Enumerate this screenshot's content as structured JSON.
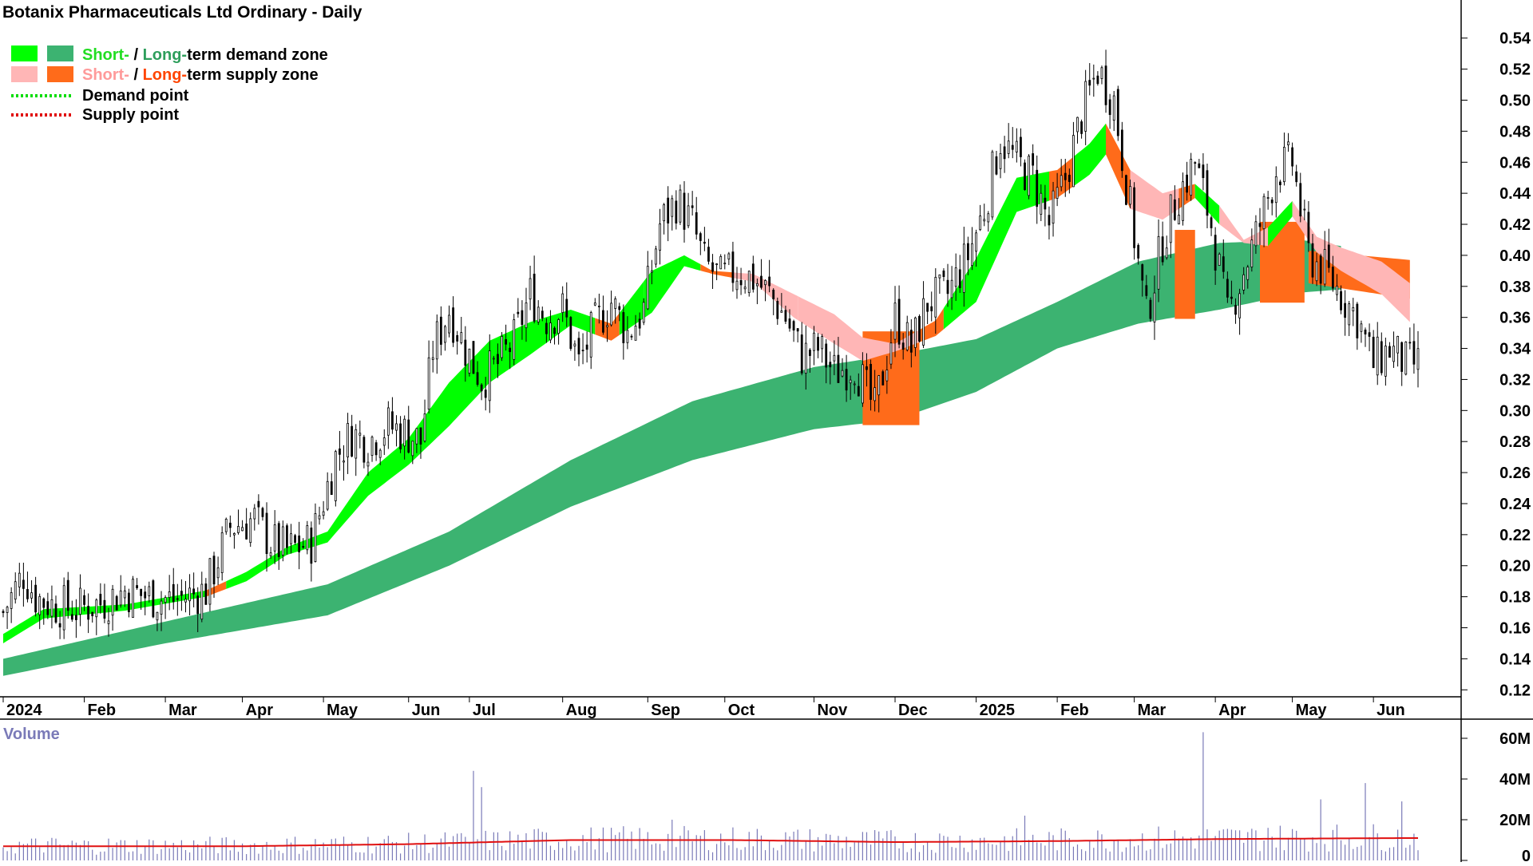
{
  "title": "Botanix Pharmaceuticals Ltd Ordinary - Daily",
  "legend": {
    "row1": {
      "short": "Short-",
      "sep": " / ",
      "long": "Long-",
      "rest": "term demand zone"
    },
    "row2": {
      "short": "Short-",
      "sep": " / ",
      "long": "Long-",
      "rest": "term supply zone"
    },
    "row3": "Demand point",
    "row4": "Supply point"
  },
  "colors": {
    "short_demand": "#00ff00",
    "long_demand": "#3cb371",
    "short_supply": "#ffb6b6",
    "long_supply": "#ff6b1a",
    "candle": "#000000",
    "volume_bar": "#7a7ab8",
    "volume_avg": "#e01010",
    "legend_short_demand_text": "#22dd22",
    "legend_long_demand_text": "#2e9e5c",
    "legend_short_supply_text": "#ff9a9a",
    "legend_long_supply_text": "#ff4500"
  },
  "volume_label": "Volume",
  "chart_data": {
    "type": "candlestick",
    "price_axis": {
      "min": 0.12,
      "max": 0.54,
      "step": 0.02,
      "ticks": [
        "0.12",
        "0.14",
        "0.16",
        "0.18",
        "0.20",
        "0.22",
        "0.24",
        "0.26",
        "0.28",
        "0.30",
        "0.32",
        "0.34",
        "0.36",
        "0.38",
        "0.40",
        "0.42",
        "0.44",
        "0.46",
        "0.48",
        "0.50",
        "0.52",
        "0.54"
      ]
    },
    "volume_axis": {
      "min": 0,
      "max": 60,
      "unit": "M",
      "ticks": [
        "0",
        "20M",
        "40M",
        "60M"
      ],
      "tick_values": [
        0,
        20,
        40,
        60
      ]
    },
    "months": [
      "2024",
      "Feb",
      "Mar",
      "Apr",
      "May",
      "Jun",
      "Jul",
      "Aug",
      "Sep",
      "Oct",
      "Nov",
      "Dec",
      "2025",
      "Feb",
      "Mar",
      "Apr",
      "May",
      "Jun"
    ],
    "month_index": [
      0,
      20,
      40,
      59,
      79,
      100,
      115,
      138,
      159,
      178,
      200,
      220,
      240,
      260,
      279,
      299,
      318,
      338
    ],
    "total_days": 350,
    "close_path": [
      [
        0,
        0.17
      ],
      [
        5,
        0.195
      ],
      [
        8,
        0.18
      ],
      [
        12,
        0.175
      ],
      [
        18,
        0.172
      ],
      [
        24,
        0.176
      ],
      [
        30,
        0.184
      ],
      [
        36,
        0.18
      ],
      [
        42,
        0.178
      ],
      [
        50,
        0.184
      ],
      [
        56,
        0.225
      ],
      [
        62,
        0.23
      ],
      [
        66,
        0.215
      ],
      [
        70,
        0.21
      ],
      [
        76,
        0.215
      ],
      [
        82,
        0.27
      ],
      [
        86,
        0.285
      ],
      [
        90,
        0.28
      ],
      [
        95,
        0.29
      ],
      [
        100,
        0.285
      ],
      [
        103,
        0.28
      ],
      [
        106,
        0.34
      ],
      [
        110,
        0.365
      ],
      [
        114,
        0.34
      ],
      [
        118,
        0.32
      ],
      [
        122,
        0.33
      ],
      [
        126,
        0.345
      ],
      [
        130,
        0.375
      ],
      [
        134,
        0.36
      ],
      [
        138,
        0.365
      ],
      [
        142,
        0.33
      ],
      [
        146,
        0.355
      ],
      [
        150,
        0.37
      ],
      [
        154,
        0.35
      ],
      [
        158,
        0.365
      ],
      [
        162,
        0.42
      ],
      [
        166,
        0.435
      ],
      [
        170,
        0.42
      ],
      [
        173,
        0.395
      ],
      [
        177,
        0.385
      ],
      [
        181,
        0.39
      ],
      [
        185,
        0.385
      ],
      [
        189,
        0.375
      ],
      [
        193,
        0.36
      ],
      [
        197,
        0.335
      ],
      [
        201,
        0.34
      ],
      [
        205,
        0.325
      ],
      [
        210,
        0.33
      ],
      [
        215,
        0.3
      ],
      [
        220,
        0.36
      ],
      [
        224,
        0.34
      ],
      [
        228,
        0.37
      ],
      [
        233,
        0.375
      ],
      [
        238,
        0.4
      ],
      [
        242,
        0.43
      ],
      [
        246,
        0.475
      ],
      [
        250,
        0.46
      ],
      [
        254,
        0.45
      ],
      [
        258,
        0.42
      ],
      [
        262,
        0.45
      ],
      [
        266,
        0.49
      ],
      [
        270,
        0.52
      ],
      [
        274,
        0.5
      ],
      [
        278,
        0.43
      ],
      [
        282,
        0.36
      ],
      [
        286,
        0.41
      ],
      [
        290,
        0.44
      ],
      [
        294,
        0.46
      ],
      [
        298,
        0.42
      ],
      [
        302,
        0.36
      ],
      [
        306,
        0.39
      ],
      [
        310,
        0.42
      ],
      [
        314,
        0.455
      ],
      [
        318,
        0.46
      ],
      [
        322,
        0.4
      ],
      [
        326,
        0.39
      ],
      [
        330,
        0.375
      ],
      [
        334,
        0.36
      ],
      [
        338,
        0.33
      ],
      [
        342,
        0.34
      ],
      [
        346,
        0.33
      ]
    ],
    "zones": {
      "short_term": {
        "lower": [
          [
            0,
            0.15
          ],
          [
            10,
            0.166
          ],
          [
            30,
            0.171
          ],
          [
            50,
            0.18
          ],
          [
            60,
            0.19
          ],
          [
            70,
            0.207
          ],
          [
            80,
            0.215
          ],
          [
            90,
            0.245
          ],
          [
            100,
            0.265
          ],
          [
            110,
            0.29
          ],
          [
            120,
            0.318
          ],
          [
            130,
            0.336
          ],
          [
            140,
            0.355
          ],
          [
            150,
            0.345
          ],
          [
            160,
            0.363
          ],
          [
            168,
            0.393
          ],
          [
            175,
            0.388
          ],
          [
            185,
            0.383
          ],
          [
            195,
            0.36
          ],
          [
            205,
            0.343
          ],
          [
            212,
            0.332
          ],
          [
            220,
            0.338
          ],
          [
            230,
            0.348
          ],
          [
            240,
            0.37
          ],
          [
            250,
            0.428
          ],
          [
            260,
            0.437
          ],
          [
            268,
            0.452
          ],
          [
            272,
            0.465
          ],
          [
            278,
            0.43
          ],
          [
            286,
            0.423
          ],
          [
            294,
            0.437
          ],
          [
            300,
            0.42
          ],
          [
            306,
            0.408
          ],
          [
            312,
            0.406
          ],
          [
            318,
            0.425
          ],
          [
            324,
            0.402
          ],
          [
            330,
            0.39
          ],
          [
            340,
            0.375
          ],
          [
            347,
            0.357
          ]
        ],
        "upper": [
          [
            0,
            0.156
          ],
          [
            10,
            0.172
          ],
          [
            30,
            0.175
          ],
          [
            50,
            0.184
          ],
          [
            60,
            0.196
          ],
          [
            70,
            0.212
          ],
          [
            80,
            0.222
          ],
          [
            90,
            0.26
          ],
          [
            100,
            0.282
          ],
          [
            110,
            0.318
          ],
          [
            120,
            0.345
          ],
          [
            130,
            0.357
          ],
          [
            140,
            0.365
          ],
          [
            150,
            0.356
          ],
          [
            160,
            0.39
          ],
          [
            168,
            0.4
          ],
          [
            175,
            0.39
          ],
          [
            185,
            0.388
          ],
          [
            195,
            0.375
          ],
          [
            205,
            0.362
          ],
          [
            212,
            0.347
          ],
          [
            220,
            0.343
          ],
          [
            230,
            0.358
          ],
          [
            240,
            0.398
          ],
          [
            250,
            0.45
          ],
          [
            260,
            0.455
          ],
          [
            268,
            0.472
          ],
          [
            272,
            0.485
          ],
          [
            278,
            0.455
          ],
          [
            286,
            0.44
          ],
          [
            294,
            0.446
          ],
          [
            300,
            0.432
          ],
          [
            306,
            0.41
          ],
          [
            312,
            0.418
          ],
          [
            318,
            0.435
          ],
          [
            324,
            0.412
          ],
          [
            330,
            0.405
          ],
          [
            340,
            0.396
          ],
          [
            347,
            0.382
          ]
        ]
      },
      "long_term": {
        "lower": [
          [
            0,
            0.129
          ],
          [
            40,
            0.15
          ],
          [
            80,
            0.168
          ],
          [
            110,
            0.2
          ],
          [
            140,
            0.238
          ],
          [
            170,
            0.268
          ],
          [
            200,
            0.288
          ],
          [
            220,
            0.294
          ],
          [
            240,
            0.312
          ],
          [
            260,
            0.34
          ],
          [
            280,
            0.356
          ],
          [
            300,
            0.365
          ],
          [
            320,
            0.376
          ],
          [
            330,
            0.378
          ]
        ],
        "upper": [
          [
            0,
            0.14
          ],
          [
            40,
            0.164
          ],
          [
            80,
            0.188
          ],
          [
            110,
            0.222
          ],
          [
            140,
            0.268
          ],
          [
            170,
            0.306
          ],
          [
            200,
            0.328
          ],
          [
            220,
            0.336
          ],
          [
            240,
            0.346
          ],
          [
            260,
            0.37
          ],
          [
            280,
            0.396
          ],
          [
            300,
            0.408
          ],
          [
            320,
            0.41
          ],
          [
            330,
            0.406
          ]
        ]
      }
    },
    "volume_avg_M": [
      [
        0,
        7
      ],
      [
        60,
        7
      ],
      [
        100,
        8
      ],
      [
        140,
        10
      ],
      [
        180,
        10
      ],
      [
        220,
        9
      ],
      [
        260,
        9.5
      ],
      [
        300,
        10.5
      ],
      [
        347,
        11
      ]
    ],
    "volume_spikes_M": [
      [
        116,
        44
      ],
      [
        118,
        36
      ],
      [
        165,
        20
      ],
      [
        252,
        22
      ],
      [
        296,
        63
      ],
      [
        312,
        16
      ],
      [
        325,
        30
      ],
      [
        336,
        38
      ],
      [
        345,
        29
      ]
    ]
  }
}
